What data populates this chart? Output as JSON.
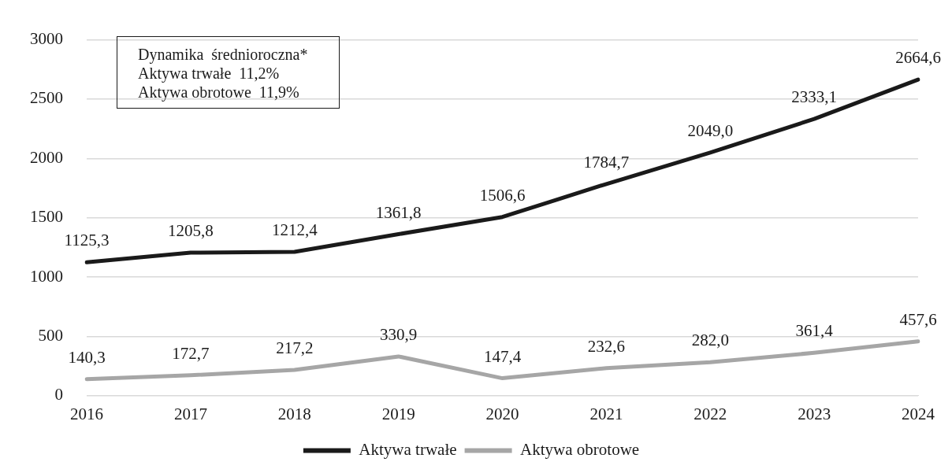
{
  "chart_data": {
    "type": "line",
    "categories": [
      "2016",
      "2017",
      "2018",
      "2019",
      "2020",
      "2021",
      "2022",
      "2023",
      "2024"
    ],
    "series": [
      {
        "name": "Aktywa trwałe",
        "color": "#1a1a1a",
        "values": [
          1125.3,
          1205.8,
          1212.4,
          1361.8,
          1506.6,
          1784.7,
          2049.0,
          2333.1,
          2664.6
        ],
        "value_labels": [
          "1125,3",
          "1205,8",
          "1212,4",
          "1361,8",
          "1506,6",
          "1784,7",
          "2049,0",
          "2333,1",
          "2664,6"
        ]
      },
      {
        "name": "Aktywa obrotowe",
        "color": "#a6a6a6",
        "values": [
          140.3,
          172.7,
          217.2,
          330.9,
          147.4,
          232.6,
          282.0,
          361.4,
          457.6
        ],
        "value_labels": [
          "140,3",
          "172,7",
          "217,2",
          "330,9",
          "147,4",
          "232,6",
          "282,0",
          "361,4",
          "457,6"
        ]
      }
    ],
    "ylim": [
      0,
      3000
    ],
    "yticks": [
      0,
      500,
      1000,
      1500,
      2000,
      2500,
      3000
    ],
    "grid": "y",
    "legend": "bottom",
    "marker": "none",
    "line_style": "solid",
    "annotations": [
      "Dynamika  średnioroczna*",
      "Aktywa trwałe  11,2%",
      "Aktywa obrotowe  11,9%"
    ]
  }
}
